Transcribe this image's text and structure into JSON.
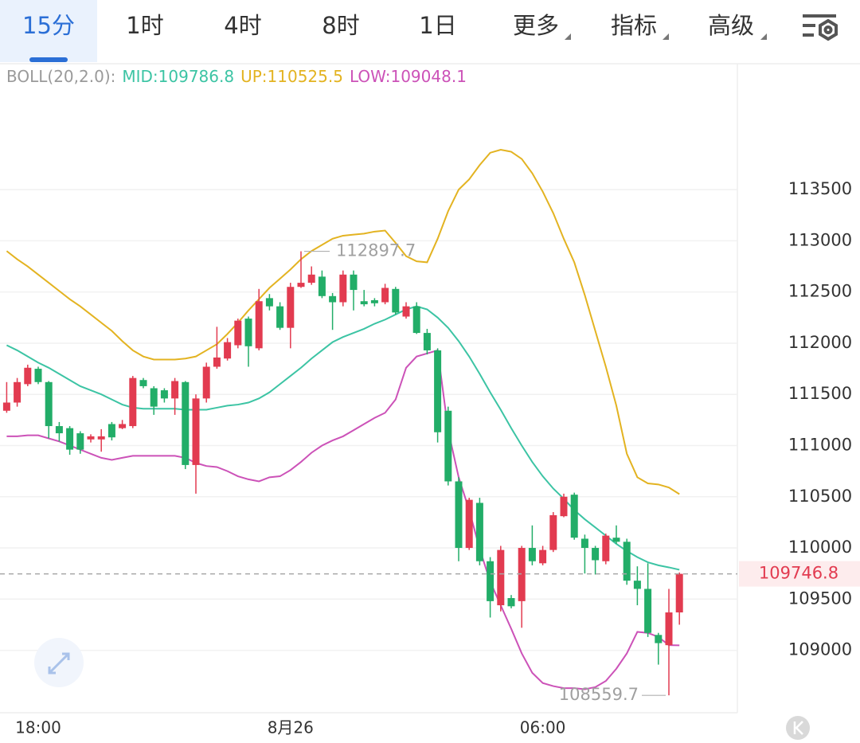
{
  "tabs": [
    "15分",
    "1时",
    "4时",
    "8时",
    "1日",
    "更多",
    "指标",
    "高级"
  ],
  "selected_tab": 0,
  "chart_data": {
    "type": "candlestick",
    "indicator": "BOLL(20,2.0):",
    "categories": [
      null,
      null,
      null,
      "18:00",
      null,
      null,
      null,
      null,
      null,
      null,
      null,
      null,
      null,
      null,
      null,
      null,
      null,
      null,
      null,
      null,
      null,
      null,
      null,
      null,
      null,
      null,
      null,
      "8月26",
      null,
      null,
      null,
      null,
      null,
      null,
      null,
      null,
      null,
      null,
      null,
      null,
      null,
      null,
      null,
      null,
      null,
      null,
      null,
      null,
      null,
      null,
      null,
      "06:00",
      null,
      null,
      null,
      null,
      null,
      null,
      null,
      null,
      null,
      null,
      null,
      null,
      null
    ],
    "open": [
      111340,
      111420,
      111600,
      111750,
      111620,
      111190,
      111170,
      111120,
      111060,
      111060,
      111210,
      111170,
      111190,
      111640,
      111560,
      111540,
      111460,
      111620,
      110810,
      111460,
      111770,
      111850,
      111980,
      112240,
      111950,
      112440,
      112360,
      112150,
      112550,
      112590,
      112650,
      112460,
      112400,
      112670,
      112410,
      112420,
      112400,
      112530,
      112260,
      112360,
      112100,
      111930,
      111340,
      110650,
      110000,
      110440,
      109870,
      109440,
      109510,
      109480,
      110000,
      109850,
      109980,
      110310,
      110520,
      110090,
      110000,
      109870,
      110100,
      110060,
      109680,
      109600,
      109150,
      109050,
      109370
    ],
    "high": [
      111620,
      111660,
      111790,
      111770,
      111630,
      111230,
      111190,
      111140,
      111110,
      111160,
      111230,
      111250,
      111680,
      111660,
      111580,
      111560,
      111660,
      111630,
      111500,
      111810,
      112160,
      112050,
      112240,
      112260,
      112530,
      112480,
      112400,
      112590,
      112897.7,
      112750,
      112710,
      112490,
      112710,
      112710,
      112520,
      112440,
      112580,
      112550,
      112400,
      112400,
      112140,
      111950,
      111380,
      110690,
      110490,
      110490,
      109910,
      110020,
      109540,
      110020,
      110220,
      110020,
      110350,
      110530,
      110540,
      110130,
      110020,
      110140,
      110220,
      110090,
      109820,
      109850,
      109170,
      109600,
      109760
    ],
    "low": [
      111320,
      111380,
      111580,
      111600,
      111070,
      111040,
      110910,
      110920,
      111030,
      110940,
      111050,
      111160,
      111170,
      111560,
      111300,
      111420,
      111300,
      110770,
      110530,
      111420,
      111750,
      111830,
      111950,
      111770,
      111930,
      112320,
      112130,
      111950,
      112540,
      112570,
      112440,
      112130,
      112360,
      112320,
      112360,
      112360,
      112380,
      112280,
      112240,
      112090,
      111890,
      111030,
      110610,
      109870,
      109980,
      109830,
      109320,
      109380,
      109410,
      109220,
      109830,
      109830,
      109960,
      110300,
      110080,
      109750,
      109740,
      109840,
      110040,
      109640,
      109440,
      109130,
      108860,
      108559.7,
      109250
    ],
    "close": [
      111420,
      111620,
      111760,
      111620,
      111190,
      111120,
      110960,
      110960,
      111090,
      111090,
      111080,
      111210,
      111660,
      111580,
      111380,
      111460,
      111630,
      110810,
      111460,
      111770,
      111860,
      112010,
      112220,
      111970,
      112410,
      112360,
      112150,
      112550,
      112590,
      112670,
      112460,
      112400,
      112670,
      112520,
      112380,
      112390,
      112540,
      112300,
      112360,
      112100,
      111930,
      111130,
      110650,
      110000,
      110470,
      109870,
      109480,
      109980,
      109430,
      110000,
      109870,
      109980,
      110320,
      110500,
      110100,
      110000,
      109880,
      110120,
      110060,
      109680,
      109600,
      109170,
      109070,
      109370,
      109746.8
    ],
    "up_color": "#e23b50",
    "down_color": "#22ad68",
    "series": [
      {
        "name": "MID:109786.8",
        "color": "#3cc4a4",
        "values": [
          111980,
          111930,
          111870,
          111810,
          111760,
          111700,
          111640,
          111580,
          111540,
          111500,
          111450,
          111400,
          111370,
          111360,
          111360,
          111360,
          111360,
          111350,
          111350,
          111350,
          111370,
          111390,
          111400,
          111420,
          111460,
          111520,
          111600,
          111680,
          111760,
          111850,
          111930,
          112010,
          112060,
          112100,
          112140,
          112190,
          112230,
          112280,
          112330,
          112360,
          112330,
          112250,
          112150,
          112020,
          111870,
          111700,
          111520,
          111350,
          111170,
          111000,
          110840,
          110700,
          110580,
          110480,
          110370,
          110280,
          110200,
          110120,
          110040,
          109970,
          109910,
          109860,
          109830,
          109810,
          109786.8
        ]
      },
      {
        "name": "UP:110525.5",
        "color": "#e3b321",
        "values": [
          112900,
          112820,
          112750,
          112670,
          112590,
          112510,
          112430,
          112360,
          112280,
          112200,
          112120,
          112020,
          111930,
          111870,
          111840,
          111840,
          111840,
          111850,
          111870,
          111930,
          111990,
          112090,
          112200,
          112320,
          112430,
          112540,
          112630,
          112720,
          112820,
          112900,
          112960,
          113020,
          113050,
          113060,
          113070,
          113090,
          113100,
          112980,
          112850,
          112800,
          112790,
          113020,
          113290,
          113500,
          113600,
          113740,
          113860,
          113890,
          113870,
          113800,
          113660,
          113480,
          113270,
          113020,
          112790,
          112470,
          112120,
          111770,
          111390,
          110920,
          110690,
          110630,
          110620,
          110590,
          110525.5
        ]
      },
      {
        "name": "LOW:109048.1",
        "color": "#cc52b8",
        "values": [
          111090,
          111090,
          111100,
          111100,
          111070,
          111040,
          111000,
          110960,
          110920,
          110880,
          110860,
          110880,
          110900,
          110900,
          110900,
          110900,
          110900,
          110880,
          110830,
          110800,
          110790,
          110750,
          110700,
          110670,
          110650,
          110690,
          110700,
          110760,
          110840,
          110930,
          111000,
          111050,
          111090,
          111150,
          111210,
          111270,
          111320,
          111450,
          111760,
          111870,
          111900,
          111930,
          111150,
          110690,
          110370,
          109990,
          109670,
          109440,
          109210,
          108970,
          108780,
          108680,
          108650,
          108630,
          108630,
          108620,
          108640,
          108700,
          108820,
          108970,
          109180,
          109170,
          109130,
          109050,
          109048.1
        ]
      }
    ],
    "ylim": [
      108390,
      114730
    ],
    "yticks": [
      109000,
      109500,
      110000,
      110500,
      111000,
      111500,
      112000,
      112500,
      113000,
      113500
    ],
    "grid": true,
    "last_price": 109746.8,
    "max_label": 112897.7,
    "min_label": 108559.7
  }
}
